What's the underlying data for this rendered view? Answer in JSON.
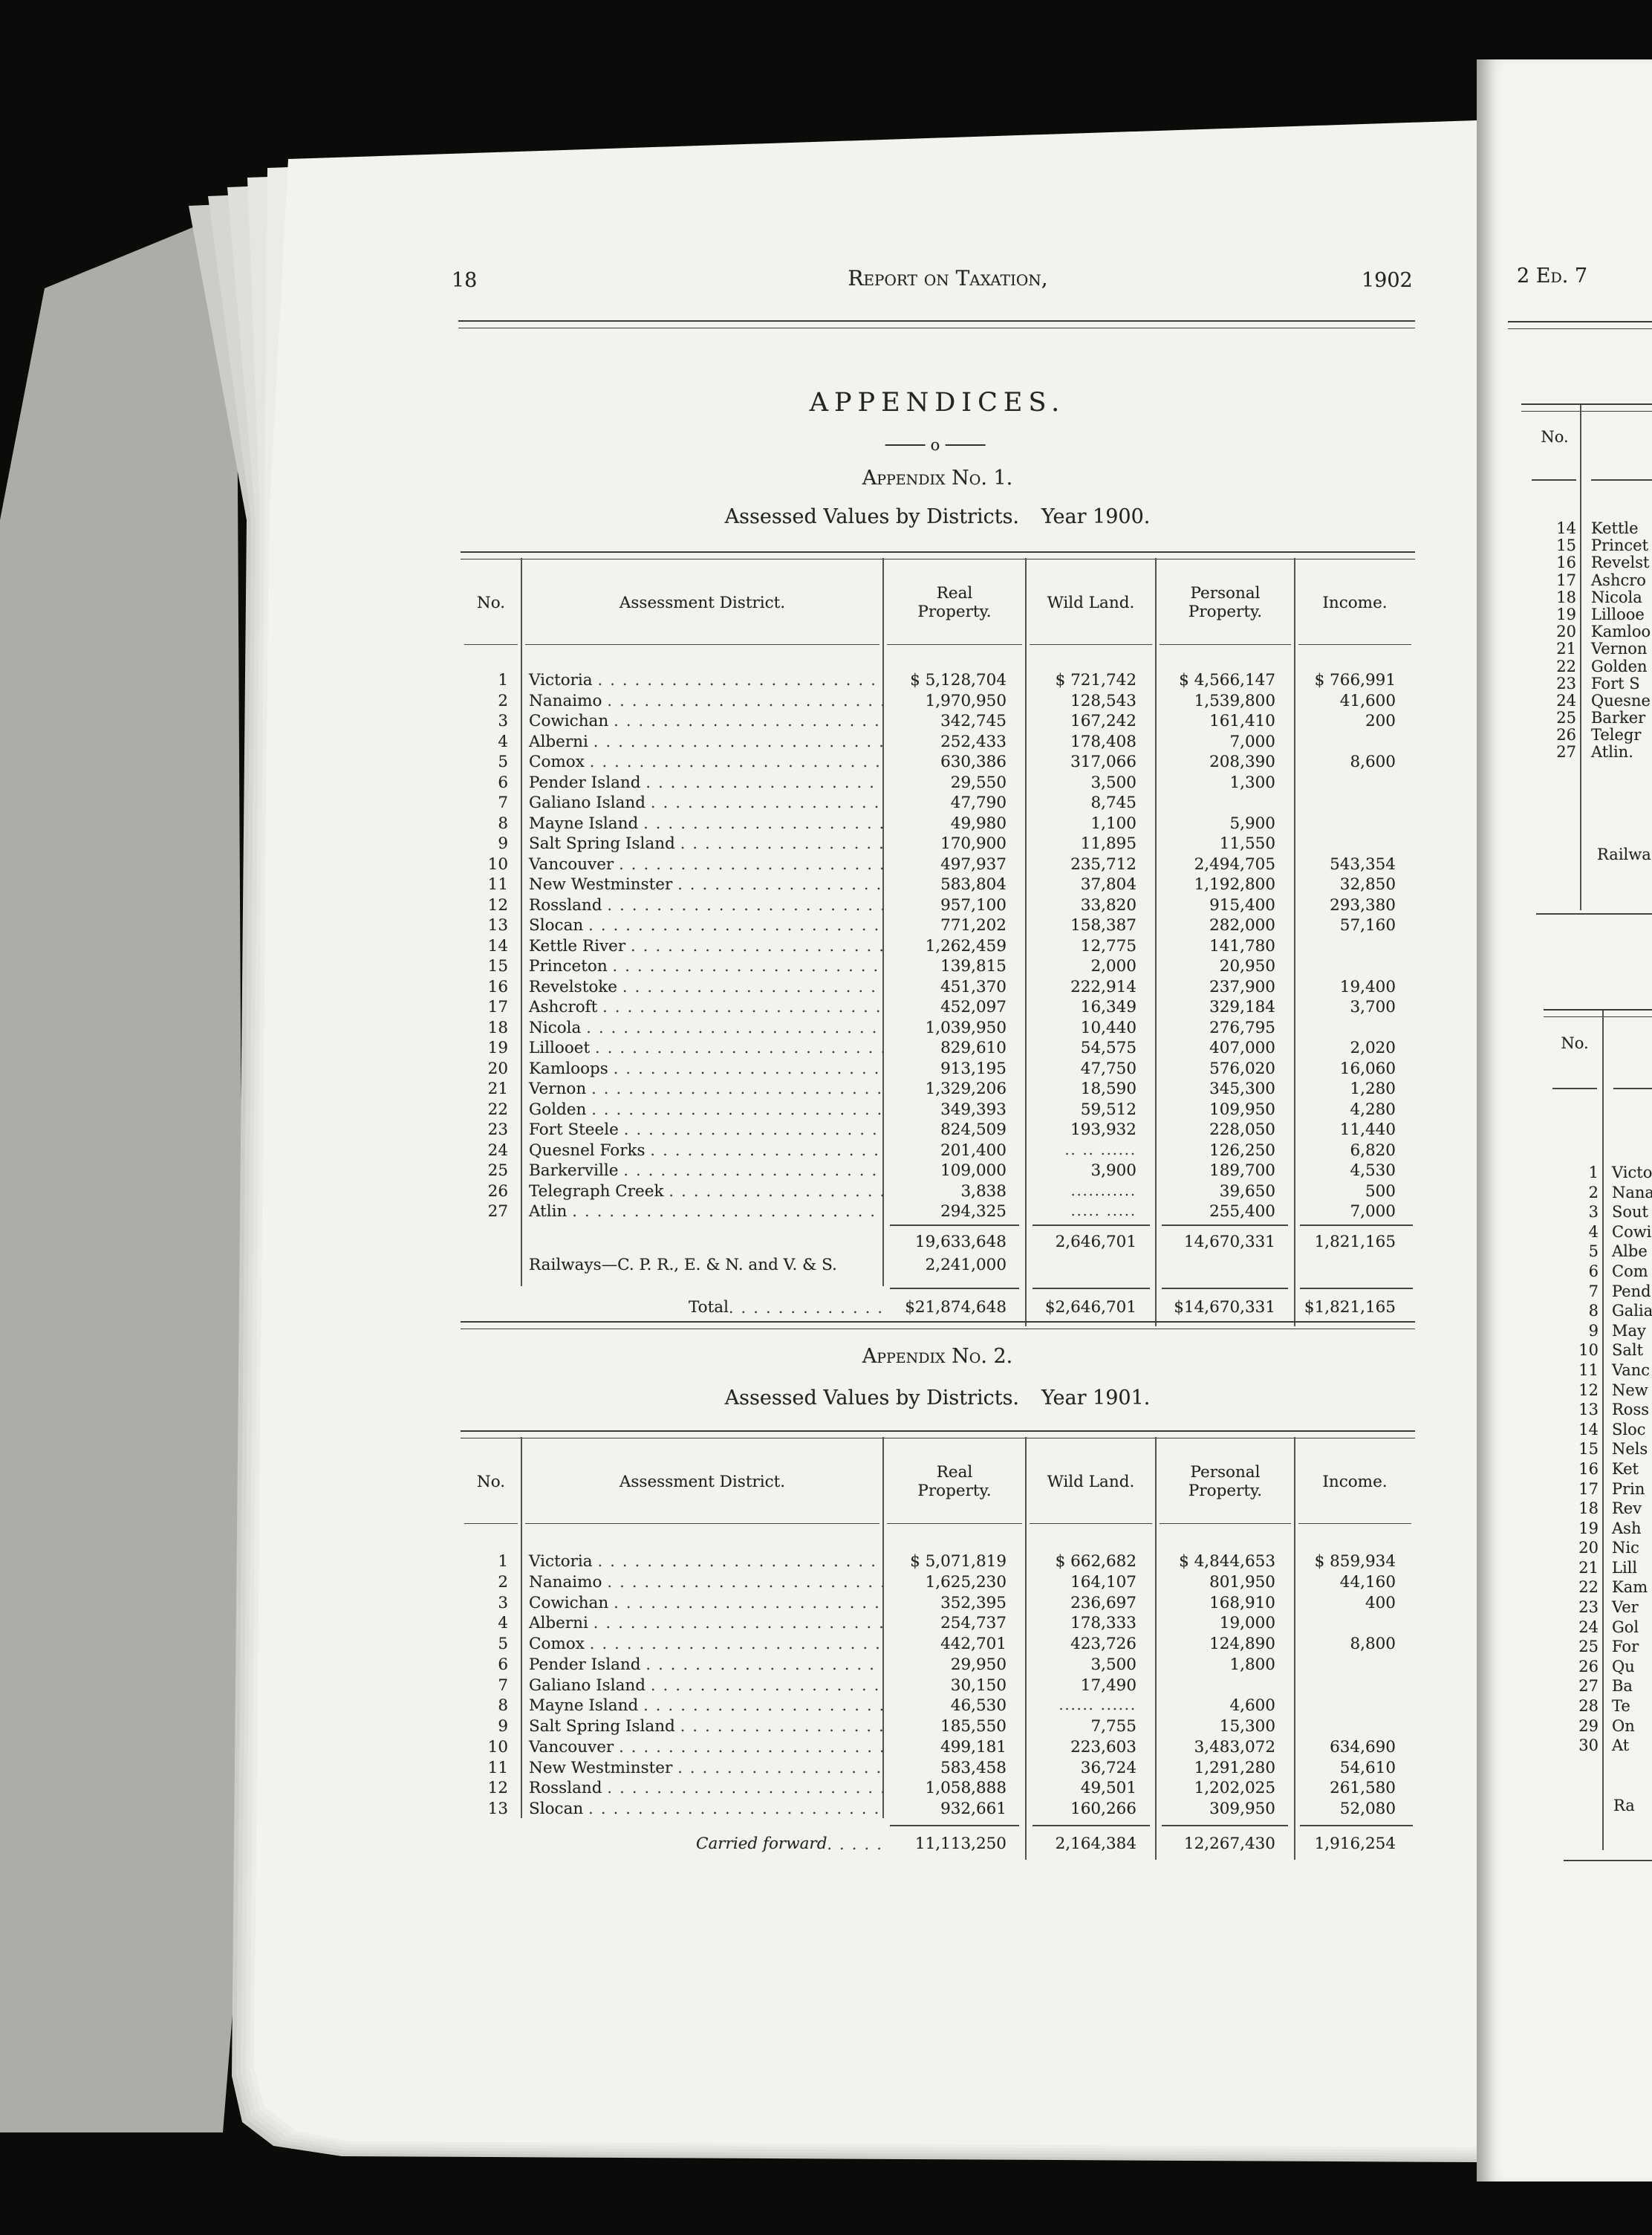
{
  "colors": {
    "background": "#0b0b0a",
    "paper": "#f2f2ee",
    "ink": "#262421"
  },
  "page_header": {
    "page_number": "18",
    "title": "Report on Taxation,",
    "year": "1902"
  },
  "appendices_title": "APPENDICES.",
  "divider_glyph": "o",
  "appendix1": {
    "heading": "Appendix No. 1.",
    "subheading": "Assessed Values by Districts.",
    "year_label": "Year 1900.",
    "columns": [
      "No.",
      "Assessment District.",
      "Real Property.",
      "Wild Land.",
      "Personal Property.",
      "Income."
    ],
    "rows": [
      {
        "no": "1",
        "district": "Victoria",
        "real": "$ 5,128,704",
        "wild": "$ 721,742",
        "personal": "$ 4,566,147",
        "income": "$ 766,991"
      },
      {
        "no": "2",
        "district": "Nanaimo",
        "real": "1,970,950",
        "wild": "128,543",
        "personal": "1,539,800",
        "income": "41,600"
      },
      {
        "no": "3",
        "district": "Cowichan",
        "real": "342,745",
        "wild": "167,242",
        "personal": "161,410",
        "income": "200"
      },
      {
        "no": "4",
        "district": "Alberni",
        "real": "252,433",
        "wild": "178,408",
        "personal": "7,000",
        "income": ""
      },
      {
        "no": "5",
        "district": "Comox",
        "real": "630,386",
        "wild": "317,066",
        "personal": "208,390",
        "income": "8,600"
      },
      {
        "no": "6",
        "district": "Pender Island",
        "real": "29,550",
        "wild": "3,500",
        "personal": "1,300",
        "income": ""
      },
      {
        "no": "7",
        "district": "Galiano Island",
        "real": "47,790",
        "wild": "8,745",
        "personal": "",
        "income": ""
      },
      {
        "no": "8",
        "district": "Mayne Island",
        "real": "49,980",
        "wild": "1,100",
        "personal": "5,900",
        "income": ""
      },
      {
        "no": "9",
        "district": "Salt Spring Island",
        "real": "170,900",
        "wild": "11,895",
        "personal": "11,550",
        "income": ""
      },
      {
        "no": "10",
        "district": "Vancouver",
        "real": "497,937",
        "wild": "235,712",
        "personal": "2,494,705",
        "income": "543,354"
      },
      {
        "no": "11",
        "district": "New Westminster",
        "real": "583,804",
        "wild": "37,804",
        "personal": "1,192,800",
        "income": "32,850"
      },
      {
        "no": "12",
        "district": "Rossland",
        "real": "957,100",
        "wild": "33,820",
        "personal": "915,400",
        "income": "293,380"
      },
      {
        "no": "13",
        "district": "Slocan",
        "real": "771,202",
        "wild": "158,387",
        "personal": "282,000",
        "income": "57,160"
      },
      {
        "no": "14",
        "district": "Kettle River",
        "real": "1,262,459",
        "wild": "12,775",
        "personal": "141,780",
        "income": ""
      },
      {
        "no": "15",
        "district": "Princeton",
        "real": "139,815",
        "wild": "2,000",
        "personal": "20,950",
        "income": ""
      },
      {
        "no": "16",
        "district": "Revelstoke",
        "real": "451,370",
        "wild": "222,914",
        "personal": "237,900",
        "income": "19,400"
      },
      {
        "no": "17",
        "district": "Ashcroft",
        "real": "452,097",
        "wild": "16,349",
        "personal": "329,184",
        "income": "3,700"
      },
      {
        "no": "18",
        "district": "Nicola",
        "real": "1,039,950",
        "wild": "10,440",
        "personal": "276,795",
        "income": ""
      },
      {
        "no": "19",
        "district": "Lillooet",
        "real": "829,610",
        "wild": "54,575",
        "personal": "407,000",
        "income": "2,020"
      },
      {
        "no": "20",
        "district": "Kamloops",
        "real": "913,195",
        "wild": "47,750",
        "personal": "576,020",
        "income": "16,060"
      },
      {
        "no": "21",
        "district": "Vernon",
        "real": "1,329,206",
        "wild": "18,590",
        "personal": "345,300",
        "income": "1,280"
      },
      {
        "no": "22",
        "district": "Golden",
        "real": "349,393",
        "wild": "59,512",
        "personal": "109,950",
        "income": "4,280"
      },
      {
        "no": "23",
        "district": "Fort Steele",
        "real": "824,509",
        "wild": "193,932",
        "personal": "228,050",
        "income": "11,440"
      },
      {
        "no": "24",
        "district": "Quesnel Forks",
        "real": "201,400",
        "wild": ".. .. ......",
        "personal": "126,250",
        "income": "6,820"
      },
      {
        "no": "25",
        "district": "Barkerville",
        "real": "109,000",
        "wild": "3,900",
        "personal": "189,700",
        "income": "4,530"
      },
      {
        "no": "26",
        "district": "Telegraph Creek",
        "real": "3,838",
        "wild": "...........",
        "personal": "39,650",
        "income": "500"
      },
      {
        "no": "27",
        "district": "Atlin",
        "real": "294,325",
        "wild": "..... .....",
        "personal": "255,400",
        "income": "7,000"
      }
    ],
    "subtotal": {
      "real": "19,633,648",
      "wild": "2,646,701",
      "personal": "14,670,331",
      "income": "1,821,165"
    },
    "railways": {
      "label": "Railways—C. P. R., E. & N. and V. & S.",
      "real": "2,241,000"
    },
    "total": {
      "label": "Total",
      "real": "$21,874,648",
      "wild": "$2,646,701",
      "personal": "$14,670,331",
      "income": "$1,821,165"
    }
  },
  "appendix2": {
    "heading": "Appendix No. 2.",
    "subheading": "Assessed Values by Districts.",
    "year_label": "Year 1901.",
    "columns": [
      "No.",
      "Assessment District.",
      "Real Property.",
      "Wild Land.",
      "Personal Property.",
      "Income."
    ],
    "rows": [
      {
        "no": "1",
        "district": "Victoria",
        "real": "$ 5,071,819",
        "wild": "$ 662,682",
        "personal": "$ 4,844,653",
        "income": "$ 859,934"
      },
      {
        "no": "2",
        "district": "Nanaimo",
        "real": "1,625,230",
        "wild": "164,107",
        "personal": "801,950",
        "income": "44,160"
      },
      {
        "no": "3",
        "district": "Cowichan",
        "real": "352,395",
        "wild": "236,697",
        "personal": "168,910",
        "income": "400"
      },
      {
        "no": "4",
        "district": "Alberni",
        "real": "254,737",
        "wild": "178,333",
        "personal": "19,000",
        "income": ""
      },
      {
        "no": "5",
        "district": "Comox",
        "real": "442,701",
        "wild": "423,726",
        "personal": "124,890",
        "income": "8,800"
      },
      {
        "no": "6",
        "district": "Pender Island",
        "real": "29,950",
        "wild": "3,500",
        "personal": "1,800",
        "income": ""
      },
      {
        "no": "7",
        "district": "Galiano Island",
        "real": "30,150",
        "wild": "17,490",
        "personal": "",
        "income": ""
      },
      {
        "no": "8",
        "district": "Mayne Island",
        "real": "46,530",
        "wild": "...... ......",
        "personal": "4,600",
        "income": ""
      },
      {
        "no": "9",
        "district": "Salt Spring Island",
        "real": "185,550",
        "wild": "7,755",
        "personal": "15,300",
        "income": ""
      },
      {
        "no": "10",
        "district": "Vancouver",
        "real": "499,181",
        "wild": "223,603",
        "personal": "3,483,072",
        "income": "634,690"
      },
      {
        "no": "11",
        "district": "New Westminster",
        "real": "583,458",
        "wild": "36,724",
        "personal": "1,291,280",
        "income": "54,610"
      },
      {
        "no": "12",
        "district": "Rossland",
        "real": "1,058,888",
        "wild": "49,501",
        "personal": "1,202,025",
        "income": "261,580"
      },
      {
        "no": "13",
        "district": "Slocan",
        "real": "932,661",
        "wild": "160,266",
        "personal": "309,950",
        "income": "52,080"
      }
    ],
    "carried_forward": {
      "label": "Carried forward",
      "real": "11,113,250",
      "wild": "2,164,384",
      "personal": "12,267,430",
      "income": "1,916,254"
    }
  },
  "right_page": {
    "edition": "2 Ed. 7",
    "no_header": "No.",
    "upper_table": {
      "rows": [
        {
          "no": "14",
          "name": "Kettle"
        },
        {
          "no": "15",
          "name": "Princet"
        },
        {
          "no": "16",
          "name": "Revelst"
        },
        {
          "no": "17",
          "name": "Ashcro"
        },
        {
          "no": "18",
          "name": "Nicola"
        },
        {
          "no": "19",
          "name": "Lillooe"
        },
        {
          "no": "20",
          "name": "Kamloo"
        },
        {
          "no": "21",
          "name": "Vernon"
        },
        {
          "no": "22",
          "name": "Golden"
        },
        {
          "no": "23",
          "name": "Fort S"
        },
        {
          "no": "24",
          "name": "Quesne"
        },
        {
          "no": "25",
          "name": "Barker"
        },
        {
          "no": "26",
          "name": "Telegr"
        },
        {
          "no": "27",
          "name": "Atlin."
        }
      ],
      "railways_label": "Railwa"
    },
    "lower_table": {
      "rows": [
        {
          "no": "1",
          "name": "Victo"
        },
        {
          "no": "2",
          "name": "Nana"
        },
        {
          "no": "3",
          "name": "Sout"
        },
        {
          "no": "4",
          "name": "Cowi"
        },
        {
          "no": "5",
          "name": "Albe"
        },
        {
          "no": "6",
          "name": "Com"
        },
        {
          "no": "7",
          "name": "Pend"
        },
        {
          "no": "8",
          "name": "Galia"
        },
        {
          "no": "9",
          "name": "May"
        },
        {
          "no": "10",
          "name": "Salt"
        },
        {
          "no": "11",
          "name": "Vanc"
        },
        {
          "no": "12",
          "name": "New"
        },
        {
          "no": "13",
          "name": "Ross"
        },
        {
          "no": "14",
          "name": "Sloc"
        },
        {
          "no": "15",
          "name": "Nels"
        },
        {
          "no": "16",
          "name": "Ket"
        },
        {
          "no": "17",
          "name": "Prin"
        },
        {
          "no": "18",
          "name": "Rev"
        },
        {
          "no": "19",
          "name": "Ash"
        },
        {
          "no": "20",
          "name": "Nic"
        },
        {
          "no": "21",
          "name": "Lill"
        },
        {
          "no": "22",
          "name": "Kam"
        },
        {
          "no": "23",
          "name": "Ver"
        },
        {
          "no": "24",
          "name": "Gol"
        },
        {
          "no": "25",
          "name": "For"
        },
        {
          "no": "26",
          "name": "Qu"
        },
        {
          "no": "27",
          "name": "Ba"
        },
        {
          "no": "28",
          "name": "Te"
        },
        {
          "no": "29",
          "name": "On"
        },
        {
          "no": "30",
          "name": "At"
        }
      ],
      "railways_label": "Ra"
    }
  }
}
